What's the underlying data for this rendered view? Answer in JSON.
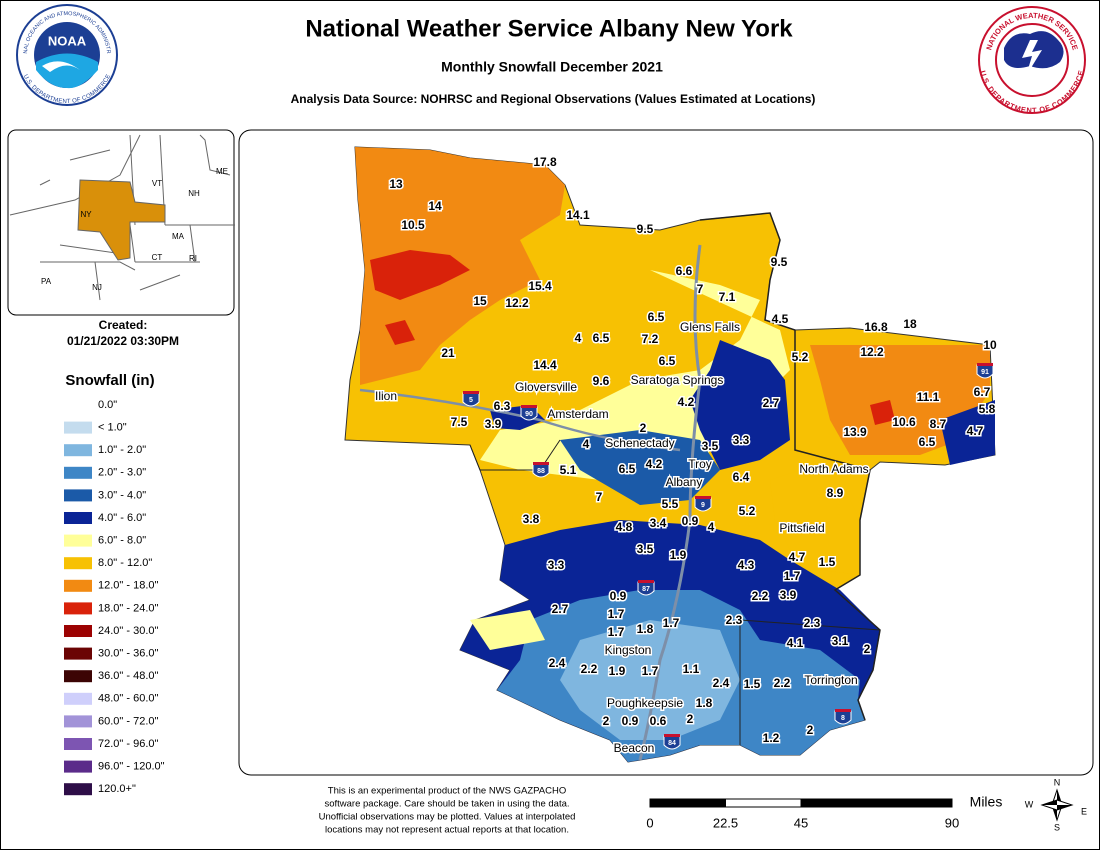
{
  "header": {
    "title": "National Weather Service Albany New York",
    "subtitle": "Monthly Snowfall December 2021",
    "source": "Analysis Data Source: NOHRSC and Regional Observations (Values Estimated at Locations)"
  },
  "logos": {
    "noaa_center": "NOAA",
    "noaa_top": "NATIONAL OCEANIC AND ATMOSPHERIC ADMINISTRATION",
    "noaa_bottom": "U.S. DEPARTMENT OF COMMERCE",
    "nws_top": "NATIONAL WEATHER SERVICE",
    "nws_bottom": "U.S. DEPARTMENT OF COMMERCE"
  },
  "inset": {
    "states": [
      "VT",
      "NH",
      "ME",
      "NY",
      "MA",
      "CT",
      "RI",
      "PA",
      "NJ"
    ]
  },
  "created": {
    "label": "Created:",
    "timestamp": "01/21/2022 03:30PM"
  },
  "legend": {
    "title": "Snowfall (in)",
    "items": [
      {
        "label": "0.0\"",
        "color": "#ffffff"
      },
      {
        "label": "< 1.0\"",
        "color": "#c4dcee"
      },
      {
        "label": "1.0\" - 2.0\"",
        "color": "#7fb6df"
      },
      {
        "label": "2.0\" - 3.0\"",
        "color": "#3e86c6"
      },
      {
        "label": "3.0\" - 4.0\"",
        "color": "#1b5aa8"
      },
      {
        "label": "4.0\" - 6.0\"",
        "color": "#0a2496"
      },
      {
        "label": "6.0\" - 8.0\"",
        "color": "#ffff99"
      },
      {
        "label": "8.0\" - 12.0\"",
        "color": "#f7c103"
      },
      {
        "label": "12.0\" - 18.0\"",
        "color": "#f28a12"
      },
      {
        "label": "18.0\" - 24.0\"",
        "color": "#d9220a"
      },
      {
        "label": "24.0\" - 30.0\"",
        "color": "#9c0202"
      },
      {
        "label": "30.0\" - 36.0\"",
        "color": "#6b0404"
      },
      {
        "label": "36.0\" - 48.0\"",
        "color": "#3c0404"
      },
      {
        "label": "48.0\" - 60.0\"",
        "color": "#cfcffb"
      },
      {
        "label": "60.0\" - 72.0\"",
        "color": "#a293d8"
      },
      {
        "label": "72.0\" - 96.0\"",
        "color": "#7d55b2"
      },
      {
        "label": "96.0\" - 120.0\"",
        "color": "#5b2b8a"
      },
      {
        "label": "120.0+\"",
        "color": "#2e0e48"
      }
    ]
  },
  "station_values": [
    17.8,
    13,
    14,
    10.5,
    14.1,
    9.5,
    9.5,
    6.6,
    7,
    7.1,
    15.4,
    15,
    12.2,
    4.5,
    16.8,
    18,
    6.5,
    4,
    6.5,
    7.2,
    12.2,
    10,
    21,
    14.4,
    6.5,
    5.2,
    9.6,
    6.7,
    11.1,
    4.2,
    2.7,
    6.3,
    5.8,
    7.5,
    3.9,
    10.6,
    8.7,
    4.7,
    13.9,
    6.5,
    2,
    4,
    3.5,
    3.3,
    5.1,
    6.5,
    4.2,
    6.4,
    8.9,
    7,
    5.5,
    5.2,
    3.8,
    4.8,
    3.4,
    0.9,
    4,
    3.5,
    1.9,
    4.7,
    1.5,
    3.3,
    4.3,
    1.7,
    0.9,
    2.2,
    3.9,
    2.7,
    1.7,
    2.3,
    2.3,
    1.7,
    1.8,
    1.7,
    4.1,
    3.1,
    2,
    2.4,
    2.2,
    1.9,
    1.7,
    1.1,
    2.4,
    1.5,
    2.2,
    1.8,
    2,
    0.9,
    0.6,
    2,
    2,
    1.2
  ],
  "places": [
    "Ilion",
    "Glens Falls",
    "Gloversville",
    "Saratoga Springs",
    "Amsterdam",
    "Schenectady",
    "Troy",
    "Albany",
    "North Adams",
    "Pittsfield",
    "Kingston",
    "Torrington",
    "Poughkeepsie",
    "Beacon"
  ],
  "route_shields": [
    "5",
    "90",
    "88",
    "9",
    "87",
    "91",
    "8",
    "84"
  ],
  "disclaimer": [
    "This is an experimental product of the NWS GAZPACHO",
    "software package. Care should be taken in using the data.",
    "Unofficial observations may be plotted. Values at interpolated",
    "locations may not represent actual reports at that location."
  ],
  "scale": {
    "unit": "Miles",
    "ticks": [
      0,
      22.5,
      45,
      90
    ]
  },
  "compass": [
    "N",
    "S",
    "E",
    "W"
  ]
}
